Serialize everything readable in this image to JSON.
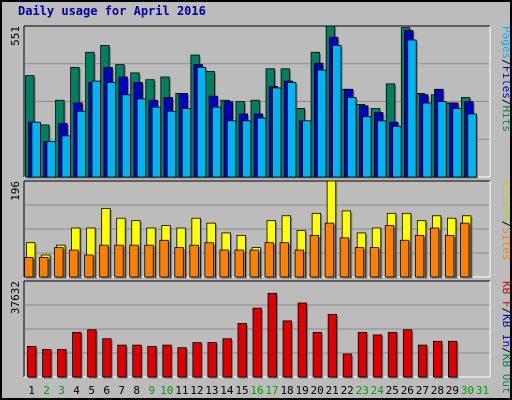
{
  "chart_data": [
    {
      "type": "bar",
      "title": "Daily usage for April 2016",
      "ymax_label": "551",
      "ylabel_parts": [
        {
          "text": "Pages",
          "color": "#00b4f0"
        },
        {
          "text": "/",
          "color": "#000000"
        },
        {
          "text": "Files",
          "color": "#0000c0"
        },
        {
          "text": "/",
          "color": "#000000"
        },
        {
          "text": "Hits",
          "color": "#008060"
        }
      ],
      "ylim": [
        0,
        551
      ],
      "grid": true,
      "categories": [
        "1",
        "2",
        "3",
        "4",
        "5",
        "6",
        "7",
        "8",
        "9",
        "10",
        "11",
        "12",
        "13",
        "14",
        "15",
        "16",
        "17",
        "18",
        "19",
        "20",
        "21",
        "22",
        "23",
        "24",
        "25",
        "26",
        "27",
        "28",
        "29",
        "30",
        "31"
      ],
      "weekend_days": [
        "2",
        "3",
        "9",
        "10",
        "16",
        "17",
        "23",
        "24",
        "30",
        "31"
      ],
      "series": [
        {
          "name": "Hits",
          "color": "#008060",
          "values": [
            370,
            190,
            280,
            400,
            455,
            480,
            410,
            380,
            355,
            365,
            305,
            445,
            385,
            280,
            275,
            280,
            395,
            395,
            250,
            455,
            551,
            320,
            265,
            250,
            340,
            545,
            305,
            300,
            270,
            290,
            0
          ]
        },
        {
          "name": "Files",
          "color": "#0000c0",
          "values": [
            200,
            130,
            195,
            270,
            345,
            400,
            365,
            345,
            280,
            290,
            305,
            410,
            295,
            275,
            230,
            230,
            330,
            350,
            205,
            415,
            510,
            320,
            260,
            235,
            200,
            535,
            300,
            320,
            270,
            275,
            0
          ]
        },
        {
          "name": "Pages",
          "color": "#00b4f0",
          "values": [
            200,
            130,
            150,
            240,
            350,
            345,
            300,
            285,
            255,
            240,
            250,
            400,
            255,
            205,
            205,
            215,
            325,
            345,
            205,
            390,
            480,
            290,
            220,
            205,
            185,
            500,
            270,
            275,
            250,
            230,
            0
          ]
        }
      ]
    },
    {
      "type": "bar",
      "ymax_label": "196",
      "ylabel_parts": [
        {
          "text": "Visits",
          "color": "#d0d000"
        },
        {
          "text": "/",
          "color": "#000000"
        },
        {
          "text": "Sites",
          "color": "#ff8000"
        }
      ],
      "ylim": [
        0,
        196
      ],
      "grid": true,
      "categories": [
        "1",
        "2",
        "3",
        "4",
        "5",
        "6",
        "7",
        "8",
        "9",
        "10",
        "11",
        "12",
        "13",
        "14",
        "15",
        "16",
        "17",
        "18",
        "19",
        "20",
        "21",
        "22",
        "23",
        "24",
        "25",
        "26",
        "27",
        "28",
        "29",
        "30",
        "31"
      ],
      "series": [
        {
          "name": "Visits",
          "color": "#ffff00",
          "values": [
            70,
            45,
            65,
            100,
            100,
            140,
            120,
            115,
            100,
            105,
            100,
            120,
            110,
            90,
            85,
            60,
            115,
            125,
            95,
            130,
            196,
            135,
            90,
            100,
            130,
            130,
            115,
            125,
            120,
            125,
            0
          ]
        },
        {
          "name": "Sites",
          "color": "#ff8000",
          "values": [
            40,
            40,
            60,
            55,
            45,
            65,
            65,
            65,
            65,
            75,
            60,
            65,
            70,
            55,
            55,
            55,
            70,
            70,
            55,
            85,
            110,
            80,
            60,
            60,
            105,
            75,
            85,
            100,
            85,
            110,
            0
          ]
        }
      ]
    },
    {
      "type": "bar",
      "ymax_label": "37632",
      "ylabel_parts": [
        {
          "text": "KB F",
          "color": "#dd0000"
        },
        {
          "text": "/",
          "color": "#000000"
        },
        {
          "text": "KB In",
          "color": "#0000c0"
        },
        {
          "text": "/",
          "color": "#000000"
        },
        {
          "text": "KB Out",
          "color": "#008060"
        }
      ],
      "ylim": [
        0,
        37632
      ],
      "grid": true,
      "categories": [
        "1",
        "2",
        "3",
        "4",
        "5",
        "6",
        "7",
        "8",
        "9",
        "10",
        "11",
        "12",
        "13",
        "14",
        "15",
        "16",
        "17",
        "18",
        "19",
        "20",
        "21",
        "22",
        "23",
        "24",
        "25",
        "26",
        "27",
        "28",
        "29",
        "30",
        "31"
      ],
      "series": [
        {
          "name": "KB F",
          "color": "#dd0000",
          "values": [
            12000,
            10800,
            10800,
            17500,
            18500,
            15000,
            12500,
            12500,
            12000,
            12500,
            11500,
            13500,
            13500,
            15000,
            21000,
            27000,
            32800,
            22000,
            29000,
            17500,
            24500,
            9000,
            17500,
            16500,
            17500,
            18500,
            12500,
            14000,
            14000,
            0,
            0
          ]
        }
      ]
    }
  ]
}
